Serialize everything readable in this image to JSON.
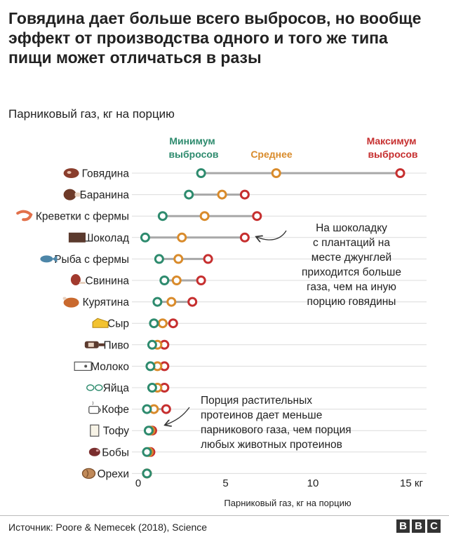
{
  "title": "Говядина дает больше всего выбросов, но вообще эффект от производства одного и того же типа пищи может отличаться в разы",
  "subtitle": "Парниковый газ, кг на порцию",
  "legend": {
    "min": "Минимум выбросов",
    "avg": "Среднее",
    "max": "Максимум выбросов"
  },
  "colors": {
    "min": "#2e8b6e",
    "avg": "#d98b2b",
    "max": "#c62f2f",
    "line": "#a8a8a8",
    "grid": "#dcdcdc"
  },
  "annotations": {
    "chocolate": [
      "На шоколадку",
      "с плантаций на",
      "месте джунглей",
      "приходится больше",
      "газа, чем на иную",
      "порцию говядины"
    ],
    "plant": [
      "Порция растительных",
      "протеинов дает меньше",
      "парникового газа, чем порция",
      "любых животных протеинов"
    ]
  },
  "source": "Источник: Poore & Nemecek (2018), Science",
  "logo": [
    "B",
    "B",
    "C"
  ],
  "chart_data": {
    "type": "dot-range",
    "xlabel": "Парниковый газ, кг на порцию",
    "xlim": [
      0,
      16
    ],
    "xticks": [
      0,
      5,
      10,
      15
    ],
    "xtick_labels": [
      "0",
      "5",
      "10",
      "15 кг"
    ],
    "grid": true,
    "categories": [
      {
        "label": "Говядина",
        "icon": "steak-icon",
        "min": 3.6,
        "avg": 7.9,
        "max": 15.0
      },
      {
        "label": "Баранина",
        "icon": "ham-icon",
        "min": 2.9,
        "avg": 4.8,
        "max": 6.1
      },
      {
        "label": "Креветки с фермы",
        "icon": "shrimp-icon",
        "min": 1.4,
        "avg": 3.8,
        "max": 6.8
      },
      {
        "label": "Шоколад",
        "icon": "chocolate-icon",
        "min": 0.4,
        "avg": 2.5,
        "max": 6.1
      },
      {
        "label": "Рыба с фермы",
        "icon": "fish-icon",
        "min": 1.2,
        "avg": 2.3,
        "max": 4.0
      },
      {
        "label": "Свинина",
        "icon": "pork-leg-icon",
        "min": 1.5,
        "avg": 2.2,
        "max": 3.6
      },
      {
        "label": "Курятина",
        "icon": "chicken-icon",
        "min": 1.1,
        "avg": 1.9,
        "max": 3.1
      },
      {
        "label": "Сыр",
        "icon": "cheese-icon",
        "min": 0.9,
        "avg": 1.4,
        "max": 2.0
      },
      {
        "label": "Пиво",
        "icon": "beer-bottle-icon",
        "min": 0.8,
        "avg": 1.1,
        "max": 1.5
      },
      {
        "label": "Молоко",
        "icon": "milk-carton-icon",
        "min": 0.7,
        "avg": 1.1,
        "max": 1.5
      },
      {
        "label": "Яйца",
        "icon": "eggs-icon",
        "min": 0.8,
        "avg": 1.1,
        "max": 1.5
      },
      {
        "label": "Кофе",
        "icon": "coffee-cup-icon",
        "min": 0.5,
        "avg": 0.9,
        "max": 1.6
      },
      {
        "label": "Тофу",
        "icon": "tofu-icon",
        "min": 0.6,
        "avg": 0.7,
        "max": 0.8
      },
      {
        "label": "Бобы",
        "icon": "bean-icon",
        "min": 0.5,
        "avg": 0.6,
        "max": 0.7
      },
      {
        "label": "Орехи",
        "icon": "nut-icon",
        "min": 0.5,
        "avg": 0.5,
        "max": 0.5
      }
    ]
  }
}
